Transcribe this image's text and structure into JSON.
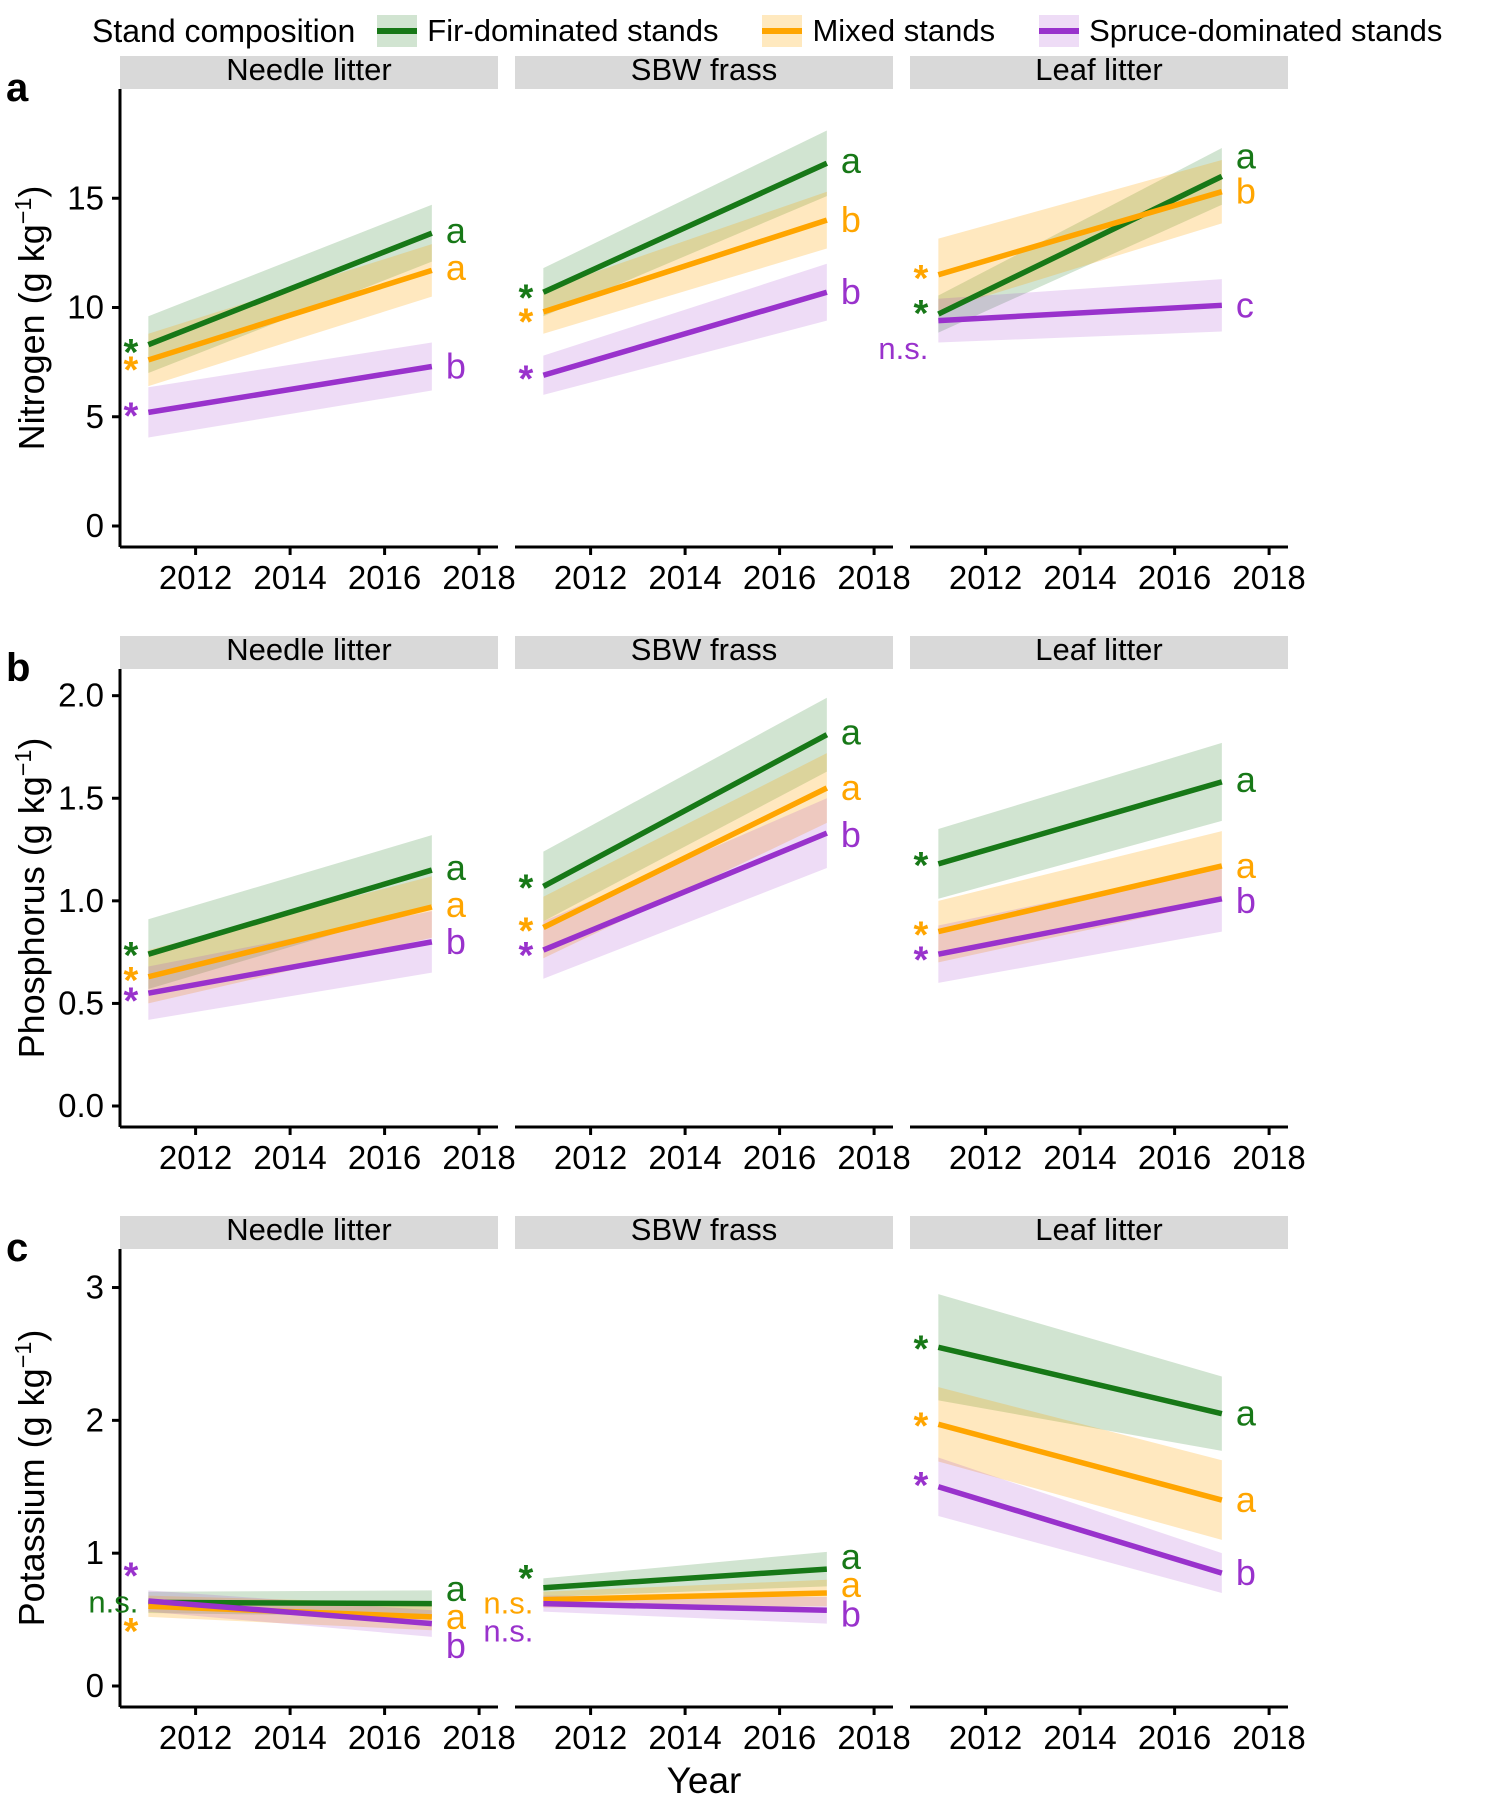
{
  "figure": {
    "legend": {
      "title": "Stand composition",
      "items": [
        {
          "key": "fir",
          "label": "Fir-dominated stands"
        },
        {
          "key": "mixed",
          "label": "Mixed stands"
        },
        {
          "key": "spruce",
          "label": "Spruce-dominated stands"
        }
      ]
    },
    "xlabel": "Year",
    "header_fill": "#d9d9d9"
  },
  "chart_data": {
    "type": "line",
    "x_domain": [
      2010.4,
      2018.4
    ],
    "x_ticks": [
      2012,
      2014,
      2016,
      2018
    ],
    "x_points": [
      2011,
      2017
    ],
    "facet_titles": [
      "Needle litter",
      "SBW frass",
      "Leaf litter"
    ],
    "series_defs": {
      "fir": {
        "label": "Fir-dominated stands",
        "color": "#177817",
        "ribbon_opacity": 0.2
      },
      "mixed": {
        "label": "Mixed stands",
        "color": "#FFA500",
        "ribbon_opacity": 0.25
      },
      "spruce": {
        "label": "Spruce-dominated stands",
        "color": "#9932CC",
        "ribbon_opacity": 0.17
      }
    },
    "rows": [
      {
        "letter": "a",
        "ylabel": {
          "base": "Nitrogen (g kg",
          "sup": "−1",
          "tail": ")"
        },
        "ylim": [
          0,
          20
        ],
        "yticks": [
          0,
          5,
          10,
          15
        ],
        "ytick_decimals": 0,
        "panels": [
          {
            "title": "Needle litter",
            "series": [
              {
                "key": "fir",
                "y": [
                  8.3,
                  13.4
                ],
                "ci": [
                  1.3,
                  1.3
                ],
                "sig": {
                  "text": "*",
                  "at": 8.0
                },
                "end_label": {
                  "text": "a",
                  "at": 13.5
                }
              },
              {
                "key": "mixed",
                "y": [
                  7.6,
                  11.7
                ],
                "ci": [
                  1.2,
                  1.2
                ],
                "sig": {
                  "text": "*",
                  "at": 7.2
                },
                "end_label": {
                  "text": "a",
                  "at": 11.8
                }
              },
              {
                "key": "spruce",
                "y": [
                  5.2,
                  7.3
                ],
                "ci": [
                  1.15,
                  1.1
                ],
                "sig": {
                  "text": "*",
                  "at": 5.1
                },
                "end_label": {
                  "text": "b",
                  "at": 7.3
                }
              }
            ]
          },
          {
            "title": "SBW frass",
            "series": [
              {
                "key": "fir",
                "y": [
                  10.7,
                  16.6
                ],
                "ci": [
                  1.1,
                  1.5
                ],
                "sig": {
                  "text": "*",
                  "at": 10.5
                },
                "end_label": {
                  "text": "a",
                  "at": 16.7
                }
              },
              {
                "key": "mixed",
                "y": [
                  9.8,
                  14.0
                ],
                "ci": [
                  1.0,
                  1.3
                ],
                "sig": {
                  "text": "*",
                  "at": 9.4
                },
                "end_label": {
                  "text": "b",
                  "at": 14.0
                }
              },
              {
                "key": "spruce",
                "y": [
                  6.9,
                  10.7
                ],
                "ci": [
                  0.9,
                  1.3
                ],
                "sig": {
                  "text": "*",
                  "at": 6.8
                },
                "end_label": {
                  "text": "b",
                  "at": 10.7
                }
              }
            ]
          },
          {
            "title": "Leaf litter",
            "series": [
              {
                "key": "fir",
                "y": [
                  9.7,
                  16.0
                ],
                "ci": [
                  0.85,
                  1.3
                ],
                "sig": {
                  "text": "*",
                  "at": 9.8
                },
                "end_label": {
                  "text": "a",
                  "at": 16.9
                }
              },
              {
                "key": "mixed",
                "y": [
                  11.5,
                  15.3
                ],
                "ci": [
                  1.65,
                  1.45
                ],
                "sig": {
                  "text": "*",
                  "at": 11.4
                },
                "end_label": {
                  "text": "b",
                  "at": 15.3
                }
              },
              {
                "key": "spruce",
                "y": [
                  9.4,
                  10.1
                ],
                "ci": [
                  1.0,
                  1.2
                ],
                "sig": {
                  "text": "n.s.",
                  "at": 8.1
                },
                "end_label": {
                  "text": "c",
                  "at": 10.1
                }
              }
            ]
          }
        ]
      },
      {
        "letter": "b",
        "ylabel": {
          "base": "Phosphorus (g kg",
          "sup": "−1",
          "tail": ")"
        },
        "ylim": [
          0,
          2.13
        ],
        "yticks": [
          0,
          0.5,
          1,
          1.5,
          2
        ],
        "ytick_decimals": 1,
        "panels": [
          {
            "title": "Needle litter",
            "series": [
              {
                "key": "fir",
                "y": [
                  0.74,
                  1.15
                ],
                "ci": [
                  0.17,
                  0.17
                ],
                "sig": {
                  "text": "*",
                  "at": 0.74
                },
                "end_label": {
                  "text": "a",
                  "at": 1.16
                }
              },
              {
                "key": "mixed",
                "y": [
                  0.63,
                  0.97
                ],
                "ci": [
                  0.13,
                  0.15
                ],
                "sig": {
                  "text": "*",
                  "at": 0.62
                },
                "end_label": {
                  "text": "a",
                  "at": 0.98
                }
              },
              {
                "key": "spruce",
                "y": [
                  0.55,
                  0.8
                ],
                "ci": [
                  0.13,
                  0.15
                ],
                "sig": {
                  "text": "*",
                  "at": 0.52
                },
                "end_label": {
                  "text": "b",
                  "at": 0.8
                }
              }
            ]
          },
          {
            "title": "SBW frass",
            "series": [
              {
                "key": "fir",
                "y": [
                  1.07,
                  1.81
                ],
                "ci": [
                  0.17,
                  0.18
                ],
                "sig": {
                  "text": "*",
                  "at": 1.07
                },
                "end_label": {
                  "text": "a",
                  "at": 1.82
                }
              },
              {
                "key": "mixed",
                "y": [
                  0.87,
                  1.55
                ],
                "ci": [
                  0.15,
                  0.17
                ],
                "sig": {
                  "text": "*",
                  "at": 0.86
                },
                "end_label": {
                  "text": "a",
                  "at": 1.55
                }
              },
              {
                "key": "spruce",
                "y": [
                  0.76,
                  1.33
                ],
                "ci": [
                  0.14,
                  0.17
                ],
                "sig": {
                  "text": "*",
                  "at": 0.74
                },
                "end_label": {
                  "text": "b",
                  "at": 1.32
                }
              }
            ]
          },
          {
            "title": "Leaf litter",
            "series": [
              {
                "key": "fir",
                "y": [
                  1.18,
                  1.58
                ],
                "ci": [
                  0.17,
                  0.19
                ],
                "sig": {
                  "text": "*",
                  "at": 1.18
                },
                "end_label": {
                  "text": "a",
                  "at": 1.59
                }
              },
              {
                "key": "mixed",
                "y": [
                  0.85,
                  1.17
                ],
                "ci": [
                  0.15,
                  0.17
                ],
                "sig": {
                  "text": "*",
                  "at": 0.84
                },
                "end_label": {
                  "text": "a",
                  "at": 1.17
                }
              },
              {
                "key": "spruce",
                "y": [
                  0.74,
                  1.01
                ],
                "ci": [
                  0.14,
                  0.16
                ],
                "sig": {
                  "text": "*",
                  "at": 0.72
                },
                "end_label": {
                  "text": "b",
                  "at": 1.0
                }
              }
            ]
          }
        ]
      },
      {
        "letter": "c",
        "ylabel": {
          "base": "Potassium (g kg",
          "sup": "−1",
          "tail": ")"
        },
        "ylim": [
          0,
          3.29
        ],
        "yticks": [
          0,
          1,
          2,
          3
        ],
        "ytick_decimals": 0,
        "panels": [
          {
            "title": "Needle litter",
            "series": [
              {
                "key": "fir",
                "y": [
                  0.63,
                  0.62
                ],
                "ci": [
                  0.08,
                  0.1
                ],
                "sig": {
                  "text": "n.s.",
                  "at": 0.63
                },
                "end_label": {
                  "text": "a",
                  "at": 0.73
                }
              },
              {
                "key": "mixed",
                "y": [
                  0.6,
                  0.52
                ],
                "ci": [
                  0.08,
                  0.1
                ],
                "sig": {
                  "text": "*",
                  "at": 0.42
                },
                "end_label": {
                  "text": "a",
                  "at": 0.52
                }
              },
              {
                "key": "spruce",
                "y": [
                  0.64,
                  0.47
                ],
                "ci": [
                  0.08,
                  0.1
                ],
                "sig": {
                  "text": "*",
                  "at": 0.84
                },
                "end_label": {
                  "text": "b",
                  "at": 0.3
                }
              }
            ]
          },
          {
            "title": "SBW frass",
            "series": [
              {
                "key": "fir",
                "y": [
                  0.74,
                  0.88
                ],
                "ci": [
                  0.07,
                  0.13
                ],
                "sig": {
                  "text": "*",
                  "at": 0.82
                },
                "end_label": {
                  "text": "a",
                  "at": 0.97
                }
              },
              {
                "key": "mixed",
                "y": [
                  0.65,
                  0.7
                ],
                "ci": [
                  0.06,
                  0.1
                ],
                "sig": {
                  "text": "n.s.",
                  "at": 0.62
                },
                "end_label": {
                  "text": "a",
                  "at": 0.76
                }
              },
              {
                "key": "spruce",
                "y": [
                  0.62,
                  0.57
                ],
                "ci": [
                  0.06,
                  0.1
                ],
                "sig": {
                  "text": "n.s.",
                  "at": 0.41
                },
                "end_label": {
                  "text": "b",
                  "at": 0.54
                }
              }
            ]
          },
          {
            "title": "Leaf litter",
            "series": [
              {
                "key": "fir",
                "y": [
                  2.55,
                  2.05
                ],
                "ci": [
                  0.4,
                  0.28
                ],
                "sig": {
                  "text": "*",
                  "at": 2.55
                },
                "end_label": {
                  "text": "a",
                  "at": 2.05
                }
              },
              {
                "key": "mixed",
                "y": [
                  1.97,
                  1.4
                ],
                "ci": [
                  0.28,
                  0.3
                ],
                "sig": {
                  "text": "*",
                  "at": 1.97
                },
                "end_label": {
                  "text": "a",
                  "at": 1.4
                }
              },
              {
                "key": "spruce",
                "y": [
                  1.5,
                  0.85
                ],
                "ci": [
                  0.22,
                  0.15
                ],
                "sig": {
                  "text": "*",
                  "at": 1.52
                },
                "end_label": {
                  "text": "b",
                  "at": 0.85
                }
              }
            ]
          }
        ]
      }
    ]
  }
}
